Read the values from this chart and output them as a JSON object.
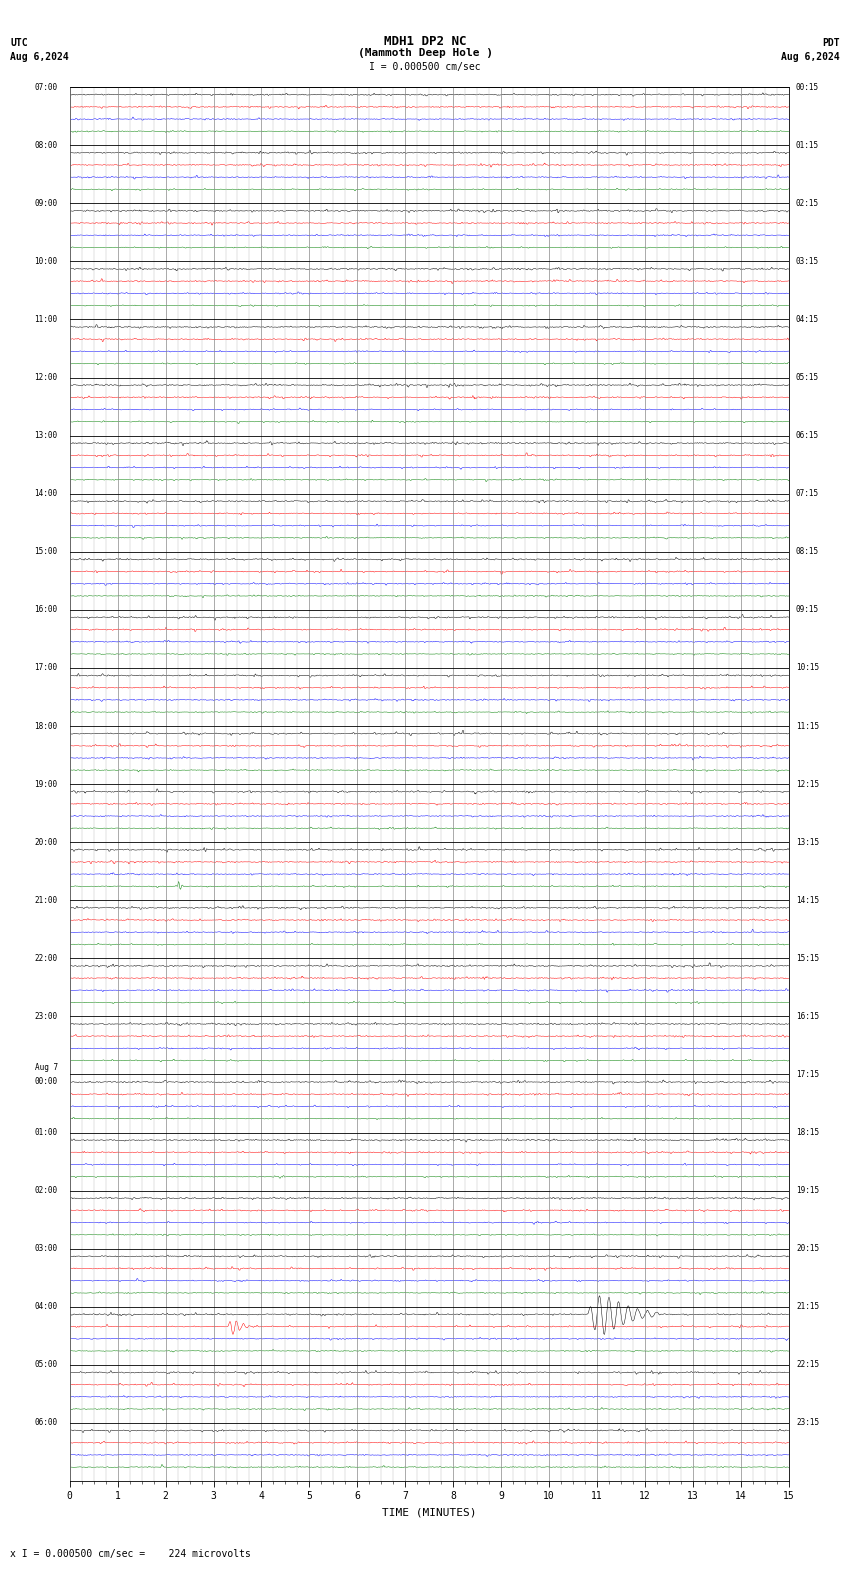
{
  "title_line1": "MDH1 DP2 NC",
  "title_line2": "(Mammoth Deep Hole )",
  "title_line3": "I = 0.000500 cm/sec",
  "utc_label": "UTC",
  "utc_date": "Aug 6,2024",
  "pdt_label": "PDT",
  "pdt_date": "Aug 6,2024",
  "xlabel": "TIME (MINUTES)",
  "footer": "x I = 0.000500 cm/sec =    224 microvolts",
  "left_times": [
    "07:00",
    "08:00",
    "09:00",
    "10:00",
    "11:00",
    "12:00",
    "13:00",
    "14:00",
    "15:00",
    "16:00",
    "17:00",
    "18:00",
    "19:00",
    "20:00",
    "21:00",
    "22:00",
    "23:00",
    "Aug 7\n00:00",
    "01:00",
    "02:00",
    "03:00",
    "04:00",
    "05:00",
    "06:00"
  ],
  "right_times": [
    "00:15",
    "01:15",
    "02:15",
    "03:15",
    "04:15",
    "05:15",
    "06:15",
    "07:15",
    "08:15",
    "09:15",
    "10:15",
    "11:15",
    "12:15",
    "13:15",
    "14:15",
    "15:15",
    "16:15",
    "17:15",
    "18:15",
    "19:15",
    "20:15",
    "21:15",
    "22:15",
    "23:15"
  ],
  "n_rows": 24,
  "minutes": 15,
  "bg_color": "#ffffff",
  "grid_color": "#aaaaaa",
  "trace_colors": [
    "#000000",
    "#ff0000",
    "#0000ff",
    "#008000"
  ],
  "quake1_row": 21,
  "quake1_time": 3.3,
  "quake1_color": "#ff0000",
  "quake1_amplitude": 0.12,
  "quake1_duration": 0.5,
  "quake2_row": 21,
  "quake2_time": 10.8,
  "quake2_color": "#000000",
  "quake2_amplitude": 0.32,
  "quake2_duration": 1.5,
  "green_spike_row": 13,
  "green_spike_time": 2.25,
  "green_spike_amplitude": 0.08,
  "green_spike_duration": 0.12
}
